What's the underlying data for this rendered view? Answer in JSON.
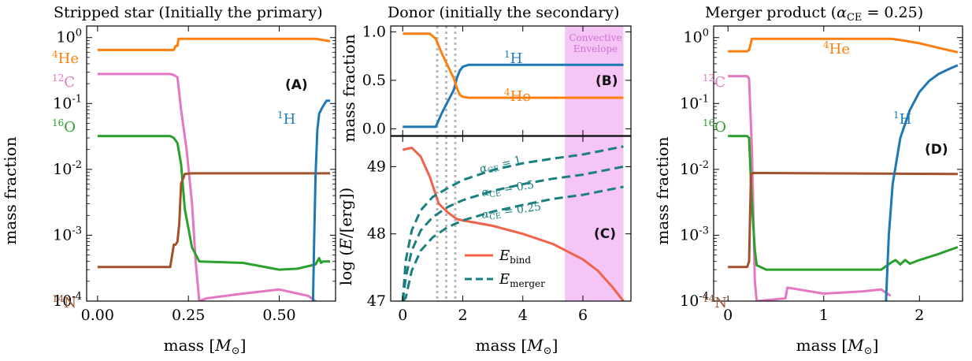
{
  "figure": {
    "panels": [
      {
        "id": "A",
        "title": "Stripped star (Initially the primary)",
        "xlabel": "mass [M⊙]",
        "ylabel": "mass fraction"
      },
      {
        "id": "B",
        "title": "Donor (initially the secondary)",
        "xlabel": "",
        "ylabel": "mass fraction"
      },
      {
        "id": "C",
        "title": "",
        "xlabel": "mass [M⊙]",
        "ylabel": "log (E/[erg])"
      },
      {
        "id": "D",
        "title": "Merger product (αCE = 0.25)",
        "xlabel": "mass [M⊙]",
        "ylabel": "mass fraction"
      }
    ],
    "colors": {
      "He4": "#ff7f0e",
      "C12": "#e377c2",
      "H1": "#1f77b4",
      "O16": "#2ca02c",
      "N14": "#a0522d",
      "ebind": "#f0624a",
      "emerger": "#1a7f7f",
      "envelope": "#f5c6f5",
      "dotted": "#b8b8b8"
    },
    "labels": {
      "he4_sup": "4",
      "he4": "He",
      "c12_sup": "12",
      "c12": "C",
      "h1_sup": "1",
      "h1": "H",
      "o16_sup": "16",
      "o16": "O",
      "n14_sup": "14",
      "n14": "N",
      "tagA": "(A)",
      "tagB": "(B)",
      "tagC": "(C)",
      "tagD": "(D)",
      "convective": "Convective",
      "envelope": "Envelope",
      "ace1": "αCE = 1",
      "ace05": "αCE = 0.5",
      "ace025": "αCE = 0.25",
      "leg_bind": "E_bind",
      "leg_merger": "E_merger"
    }
  },
  "chart_data": [
    {
      "type": "line",
      "panel": "A",
      "yscale": "log",
      "xlim": [
        -0.03,
        0.655
      ],
      "ylim": [
        0.0001,
        1.5
      ],
      "xticks": [
        "0.00",
        "0.25",
        "0.50"
      ],
      "yticks": [
        "10^0",
        "10^-1",
        "10^-2",
        "10^-3",
        "10^-4"
      ],
      "series": [
        {
          "name": "4He",
          "x": [
            0,
            0.2,
            0.21,
            0.215,
            0.22,
            0.223,
            0.6,
            0.63,
            0.64
          ],
          "y": [
            0.65,
            0.65,
            0.65,
            0.75,
            0.75,
            0.96,
            0.96,
            0.9,
            0.88
          ]
        },
        {
          "name": "12C",
          "x": [
            0,
            0.2,
            0.21,
            0.22,
            0.23,
            0.245,
            0.26,
            0.27,
            0.28,
            0.3,
            0.4,
            0.5,
            0.58,
            0.6
          ],
          "y": [
            0.28,
            0.28,
            0.27,
            0.25,
            0.08,
            0.02,
            0.003,
            0.0004,
            0.0001,
            0.00011,
            0.00013,
            0.00015,
            0.00012,
            0.0001
          ]
        },
        {
          "name": "16O",
          "x": [
            0,
            0.2,
            0.21,
            0.22,
            0.23,
            0.24,
            0.26,
            0.28,
            0.4,
            0.5,
            0.55,
            0.6,
            0.61,
            0.615,
            0.62,
            0.63,
            0.64
          ],
          "y": [
            0.032,
            0.032,
            0.03,
            0.025,
            0.012,
            0.0025,
            0.00065,
            0.0004,
            0.00038,
            0.0003,
            0.00031,
            0.00036,
            0.00045,
            0.00038,
            0.0004,
            0.0004,
            0.0004
          ]
        },
        {
          "name": "14N",
          "x": [
            0,
            0.19,
            0.2,
            0.21,
            0.215,
            0.22,
            0.225,
            0.23,
            0.24,
            0.26,
            0.3,
            0.64
          ],
          "y": [
            0.00033,
            0.00033,
            0.00033,
            0.00072,
            0.00072,
            0.0008,
            0.0015,
            0.006,
            0.0085,
            0.0087,
            0.0087,
            0.0087
          ]
        },
        {
          "name": "1H",
          "x": [
            0.593,
            0.596,
            0.6,
            0.605,
            0.61,
            0.62,
            0.63,
            0.64
          ],
          "y": [
            0.0001,
            0.0008,
            0.008,
            0.04,
            0.07,
            0.09,
            0.11,
            0.11
          ]
        }
      ]
    },
    {
      "type": "line",
      "panel": "B",
      "xlim": [
        -0.4,
        7.6
      ],
      "ylim": [
        -0.07,
        1.06
      ],
      "yticks": [
        "0.0",
        "0.5",
        "1.0"
      ],
      "shaded_region": [
        5.4,
        7.35
      ],
      "vlines_dotted": [
        1.15,
        1.45,
        1.75
      ],
      "series": [
        {
          "name": "1H",
          "x": [
            0,
            1.1,
            1.3,
            1.5,
            1.7,
            1.8,
            1.9,
            2.0,
            2.2,
            3,
            7.35
          ],
          "y": [
            0.02,
            0.02,
            0.16,
            0.28,
            0.4,
            0.52,
            0.6,
            0.64,
            0.66,
            0.66,
            0.66
          ]
        },
        {
          "name": "4He",
          "x": [
            0,
            0.9,
            1.1,
            1.3,
            1.5,
            1.7,
            1.8,
            1.9,
            2.0,
            2.2,
            3,
            7.35
          ],
          "y": [
            0.98,
            0.98,
            0.93,
            0.78,
            0.65,
            0.52,
            0.42,
            0.35,
            0.33,
            0.32,
            0.32,
            0.32
          ]
        }
      ]
    },
    {
      "type": "line",
      "panel": "C",
      "xlim": [
        -0.4,
        7.6
      ],
      "ylim": [
        47,
        49.45
      ],
      "xticks": [
        "0",
        "2",
        "4",
        "6"
      ],
      "yticks": [
        "47",
        "48",
        "49"
      ],
      "shaded_region": [
        5.4,
        7.35
      ],
      "vlines_dotted": [
        1.15,
        1.45,
        1.75
      ],
      "series": [
        {
          "name": "E_bind",
          "x": [
            0,
            0.3,
            0.6,
            0.9,
            1.2,
            1.5,
            1.8,
            2,
            3,
            4,
            5,
            6,
            6.5,
            7,
            7.35
          ],
          "y": [
            49.25,
            49.28,
            49.15,
            48.85,
            48.45,
            48.32,
            48.22,
            48.2,
            48.12,
            48.0,
            47.85,
            47.62,
            47.45,
            47.2,
            47.0
          ],
          "color": "#f0624a"
        },
        {
          "name": "alpha_CE = 1",
          "x": [
            0,
            0.1,
            0.3,
            0.6,
            1,
            1.5,
            2,
            3,
            4,
            5,
            6,
            7.35
          ],
          "y": [
            47,
            47.6,
            48.05,
            48.35,
            48.55,
            48.68,
            48.8,
            48.95,
            49.05,
            49.12,
            49.18,
            49.3
          ],
          "dashed": true
        },
        {
          "name": "alpha_CE = 0.5",
          "x": [
            0,
            0.1,
            0.3,
            0.6,
            1,
            1.5,
            2,
            3,
            4,
            5,
            6,
            7.35
          ],
          "y": [
            47,
            47.35,
            47.75,
            48.05,
            48.25,
            48.4,
            48.5,
            48.64,
            48.74,
            48.82,
            48.88,
            49.0
          ],
          "dashed": true
        },
        {
          "name": "alpha_CE = 0.25",
          "x": [
            0,
            0.1,
            0.3,
            0.6,
            1,
            1.5,
            2,
            3,
            4,
            5,
            6,
            7.35
          ],
          "y": [
            47,
            47.05,
            47.45,
            47.75,
            47.95,
            48.1,
            48.2,
            48.33,
            48.43,
            48.52,
            48.58,
            48.7
          ],
          "dashed": true
        }
      ]
    },
    {
      "type": "line",
      "panel": "D",
      "yscale": "log",
      "xlim": [
        -0.15,
        2.45
      ],
      "ylim": [
        0.0001,
        1.5
      ],
      "xticks": [
        "0",
        "1",
        "2"
      ],
      "series": [
        {
          "name": "4He",
          "x": [
            0,
            0.2,
            0.22,
            0.25,
            1.5,
            1.7,
            1.8,
            2.0,
            2.2,
            2.4
          ],
          "y": [
            0.62,
            0.62,
            0.65,
            0.96,
            0.96,
            0.96,
            0.92,
            0.82,
            0.7,
            0.6
          ]
        },
        {
          "name": "12C",
          "x": [
            0,
            0.2,
            0.22,
            0.25,
            0.28,
            0.3,
            0.6,
            0.62,
            1.0,
            1.4,
            1.6,
            1.7
          ],
          "y": [
            0.26,
            0.26,
            0.24,
            0.02,
            0.0002,
            0.0001,
            0.00011,
            0.00016,
            0.00013,
            0.00014,
            0.00015,
            0.00012
          ]
        },
        {
          "name": "16O",
          "x": [
            0,
            0.2,
            0.22,
            0.25,
            0.28,
            0.3,
            0.4,
            1.6,
            1.7,
            1.75,
            1.8,
            1.85,
            1.9,
            2.0,
            2.2,
            2.4
          ],
          "y": [
            0.032,
            0.032,
            0.03,
            0.003,
            0.0006,
            0.00035,
            0.0003,
            0.0003,
            0.00038,
            0.00042,
            0.00036,
            0.00042,
            0.00037,
            0.00042,
            0.00052,
            0.00066
          ]
        },
        {
          "name": "14N",
          "x": [
            0,
            0.2,
            0.22,
            0.24,
            0.26,
            0.4,
            2.4
          ],
          "y": [
            0.00033,
            0.00033,
            0.0004,
            0.0085,
            0.0088,
            0.0088,
            0.0085
          ]
        },
        {
          "name": "1H",
          "x": [
            1.65,
            1.68,
            1.72,
            1.8,
            1.9,
            2.0,
            2.1,
            2.2,
            2.3,
            2.4
          ],
          "y": [
            0.0001,
            0.001,
            0.006,
            0.03,
            0.08,
            0.15,
            0.22,
            0.28,
            0.33,
            0.38
          ]
        }
      ]
    }
  ]
}
